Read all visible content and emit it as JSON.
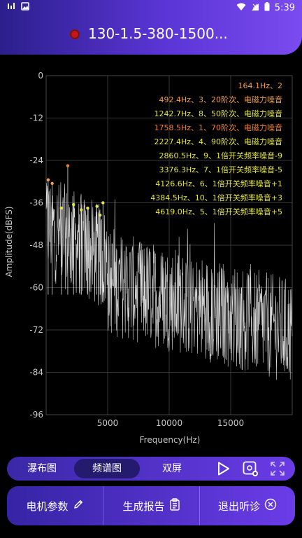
{
  "status_bar": {
    "time": "5:39"
  },
  "header": {
    "title": "130-1.5-380-1500..."
  },
  "chart_data": {
    "type": "line",
    "ylabel": "Amplitude(dBFS)",
    "xlabel": "Frequency(Hz)",
    "ylim": [
      -96,
      0
    ],
    "xlim": [
      0,
      20000
    ],
    "y_ticks": [
      "0",
      "-12",
      "-24",
      "-36",
      "-48",
      "-60",
      "-72",
      "-84",
      "-96"
    ],
    "x_ticks": [
      "5000",
      "10000",
      "15000"
    ],
    "grid": true,
    "peaks": [
      {
        "freq": 164.1,
        "amp": -29.5,
        "label": "164.1Hz、2",
        "color": "#f0a050"
      },
      {
        "freq": 492.4,
        "amp": -30.5,
        "label": "492.4Hz、3、20阶次、电磁力噪音",
        "color": "#f0a050"
      },
      {
        "freq": 1242.7,
        "amp": -37.5,
        "label": "1242.7Hz、8、50阶次、电磁力噪音",
        "color": "#e6e640"
      },
      {
        "freq": 1758.5,
        "amp": -25.5,
        "label": "1758.5Hz、1、70阶次、电磁力噪音",
        "color": "#f08030"
      },
      {
        "freq": 2227.4,
        "amp": -36.5,
        "label": "2227.4Hz、4、90阶次、电磁力噪音",
        "color": "#e6e640"
      },
      {
        "freq": 2860.5,
        "amp": -38.0,
        "label": "2860.5Hz、9、1倍开关频率噪音-9",
        "color": "#e6e640"
      },
      {
        "freq": 3376.3,
        "amp": -37.5,
        "label": "3376.3Hz、7、1倍开关频率噪音-5",
        "color": "#e6e640"
      },
      {
        "freq": 4126.6,
        "amp": -37.0,
        "label": "4126.6Hz、6、1倍开关频率噪音+1",
        "color": "#e6e640"
      },
      {
        "freq": 4384.5,
        "amp": -39.5,
        "label": "4384.5Hz、10、1倍开关频率噪音+3",
        "color": "#e6e640"
      },
      {
        "freq": 4619.0,
        "amp": -36.0,
        "label": "4619.0Hz、5、1倍开关频率噪音+5",
        "color": "#e6e640"
      }
    ]
  },
  "tabs": {
    "waterfall": "瀑布图",
    "spectrum": "频谱图",
    "dual": "双屏",
    "active": "spectrum"
  },
  "actions": {
    "motor_params": "电机参数",
    "generate_report": "生成报告",
    "exit_diagnosis": "退出听诊"
  },
  "colors": {
    "accent_start": "#3524a4",
    "accent_end": "#6b3ce8",
    "record_dot": "#c01818"
  }
}
